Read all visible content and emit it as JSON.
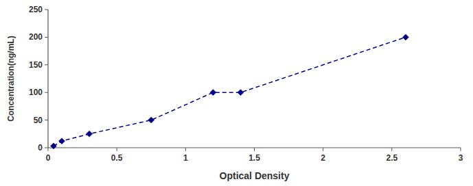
{
  "chart_data": {
    "type": "line",
    "xlabel": "Optical Density",
    "ylabel": "Concentration(ng/mL)",
    "x": [
      0.04,
      0.1,
      0.3,
      0.75,
      1.2,
      1.4,
      2.6
    ],
    "values": [
      3,
      12,
      25,
      50,
      100,
      100,
      200
    ],
    "color": "#00008B",
    "marker": "diamond",
    "line_style": "dashed",
    "xlim": [
      0,
      3
    ],
    "ylim": [
      0,
      250
    ],
    "xticks": [
      0,
      0.5,
      1,
      1.5,
      2,
      2.5,
      3
    ],
    "yticks": [
      0,
      50,
      100,
      150,
      200,
      250
    ],
    "grid": false
  }
}
